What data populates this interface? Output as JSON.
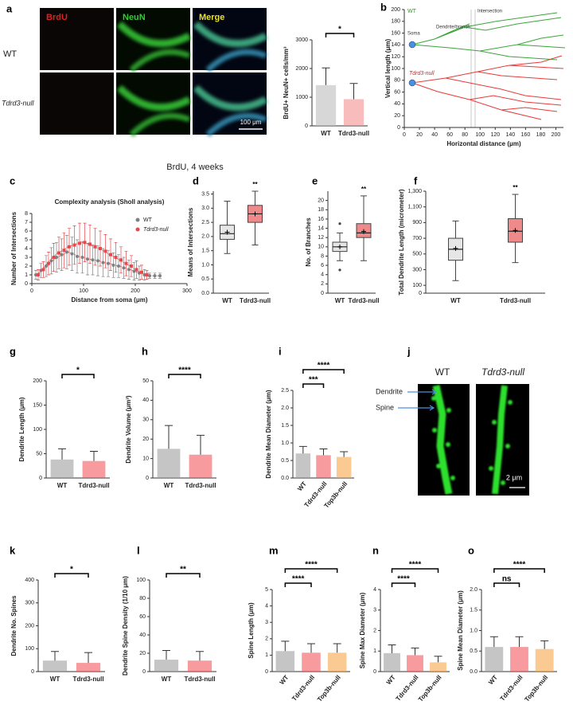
{
  "caption": "BrdU, 4 weeks",
  "images": {
    "a": {
      "panel": "a",
      "channels": [
        "BrdU",
        "NeuN",
        "Merge"
      ],
      "rows": [
        "WT",
        "Tdrd3-null"
      ],
      "scale": "100 μm"
    },
    "b": {
      "annotations": [
        "WT",
        "Dendrite/branch",
        "Intersection",
        "Soma",
        "Tdrd3-null"
      ]
    },
    "j": {
      "panel": "j",
      "columns": [
        "WT",
        "Tdrd3-null"
      ],
      "labels": [
        "Dendrite",
        "Spine"
      ],
      "scale": "2 μm"
    }
  },
  "chart_data": [
    {
      "type": "bar",
      "ylabel": "BrdU+ NeuN+ cells/mm³",
      "categories": [
        "WT",
        "Tdrd3-null"
      ],
      "values": [
        1420,
        930
      ],
      "errors": [
        600,
        550
      ],
      "colors": [
        "#bdbdbd",
        "#f48f8f"
      ],
      "ylim": [
        0,
        3000
      ],
      "yticks": [
        0,
        1000,
        2000,
        3000
      ],
      "significance": [
        "*"
      ]
    },
    {
      "type": "tracing",
      "panel": "b",
      "ylabel": "Vertical length (μm)",
      "xlabel": "Horizontal distance (μm)",
      "xlim": [
        0,
        210
      ],
      "xticks": [
        0,
        20,
        40,
        60,
        80,
        100,
        120,
        140,
        160,
        180,
        200
      ],
      "ylim": [
        0,
        200
      ],
      "yticks": [
        0,
        20,
        40,
        60,
        80,
        100,
        120,
        140,
        160,
        180,
        200
      ]
    },
    {
      "type": "line",
      "panel": "c",
      "title": "Complexity analysis (Sholl analysis)",
      "xlabel": "Distance from soma (μm)",
      "ylabel": "Number of Intersections",
      "x": [
        10,
        20,
        30,
        40,
        50,
        60,
        70,
        80,
        90,
        100,
        110,
        120,
        130,
        140,
        150,
        160,
        170,
        180,
        190,
        200,
        210,
        220,
        230,
        240,
        250
      ],
      "series": [
        {
          "name": "WT",
          "color": "#808080",
          "values": [
            1,
            1.5,
            2,
            2.6,
            3,
            3.3,
            3.6,
            3.4,
            3.1,
            3,
            2.8,
            2.7,
            2.6,
            2.4,
            2.3,
            2.1,
            2,
            1.8,
            1.6,
            1.4,
            1.2,
            1,
            0.9,
            0.9,
            0.9
          ],
          "errors": [
            0.5,
            0.8,
            1.2,
            1.5,
            1.7,
            1.8,
            1.9,
            1.9,
            1.9,
            1.8,
            1.8,
            1.7,
            1.7,
            1.6,
            1.5,
            1.4,
            1.3,
            1.2,
            1.1,
            1,
            0.8,
            0.6,
            0.3,
            0.3,
            0.3
          ]
        },
        {
          "name": "Tdrd3-null",
          "color": "#e8474c",
          "values": [
            1,
            1.6,
            2.3,
            3,
            3.5,
            3.8,
            4.2,
            4.4,
            4.6,
            4.7,
            4.5,
            4.2,
            4,
            3.7,
            3.3,
            3,
            2.7,
            2.3,
            2,
            1.6,
            1.3,
            1,
            null,
            null,
            null
          ],
          "errors": [
            0.6,
            0.9,
            1.3,
            1.6,
            1.8,
            2,
            2.1,
            2.2,
            2.3,
            2.2,
            2.2,
            2.1,
            2,
            1.9,
            1.8,
            1.7,
            1.5,
            1.4,
            1.2,
            1,
            0.8,
            0.5,
            null,
            null,
            null
          ]
        }
      ],
      "xlim": [
        0,
        300
      ],
      "xticks": [
        0,
        100,
        200,
        300
      ],
      "ylim": [
        0,
        8
      ],
      "yticks": [
        0,
        1,
        2,
        3,
        4,
        5,
        6,
        7,
        8
      ]
    },
    {
      "type": "box",
      "panel": "d",
      "ylabel": "Means of Intersections",
      "categories": [
        "WT",
        "Tdrd3-null"
      ],
      "colors": [
        "#e6e6e6",
        "#f08a8a"
      ],
      "boxes": [
        {
          "min": 1.4,
          "q1": 1.9,
          "median": 2.1,
          "q3": 2.4,
          "max": 3.25,
          "mean": 2.15,
          "outliers": []
        },
        {
          "min": 1.7,
          "q1": 2.5,
          "median": 2.8,
          "q3": 3.1,
          "max": 3.6,
          "mean": 2.8,
          "outliers": []
        }
      ],
      "ylim": [
        0,
        3.6
      ],
      "yticks": [
        {
          "value": 0,
          "label": "0.0"
        },
        0.5,
        {
          "value": 1,
          "label": "1.0"
        },
        1.5,
        {
          "value": 2,
          "label": "2.0"
        },
        2.5,
        {
          "value": 3,
          "label": "3.0"
        },
        3.5
      ],
      "significance": [
        "**"
      ]
    },
    {
      "type": "box",
      "panel": "e",
      "ylabel": "No. of Branches",
      "categories": [
        "WT",
        "Tdrd3-null"
      ],
      "colors": [
        "#e6e6e6",
        "#f08a8a"
      ],
      "boxes": [
        {
          "min": 7,
          "q1": 9,
          "median": 10,
          "q3": 11,
          "max": 13,
          "mean": 10,
          "outliers": [
            15,
            5
          ]
        },
        {
          "min": 7,
          "q1": 12,
          "median": 13,
          "q3": 15,
          "max": 21,
          "mean": 13.3,
          "outliers": []
        }
      ],
      "ylim": [
        0,
        22
      ],
      "yticks": [
        0,
        2,
        4,
        6,
        8,
        10,
        12,
        14,
        16,
        18,
        20
      ],
      "significance": [
        "**"
      ]
    },
    {
      "type": "box",
      "panel": "f",
      "ylabel": "Total Dendrite Length (micrometer)",
      "categories": [
        "WT",
        "Tdrd3-null"
      ],
      "colors": [
        "#e6e6e6",
        "#f08a8a"
      ],
      "boxes": [
        {
          "min": 160,
          "q1": 420,
          "median": 560,
          "q3": 700,
          "max": 920,
          "mean": 570,
          "outliers": []
        },
        {
          "min": 390,
          "q1": 650,
          "median": 790,
          "q3": 950,
          "max": 1260,
          "mean": 800,
          "outliers": []
        }
      ],
      "ylim": [
        0,
        1300
      ],
      "yticks": [
        0,
        100,
        300,
        500,
        700,
        900,
        {
          "value": 1100,
          "label": "1,100"
        },
        {
          "value": 1300,
          "label": "1,300"
        }
      ],
      "significance": [
        "**"
      ]
    },
    {
      "type": "bar",
      "panel": "g",
      "ylabel": "Dendrite Length (μm)",
      "categories": [
        "WT",
        "Tdrd3-null"
      ],
      "values": [
        38,
        35
      ],
      "errors": [
        22,
        20
      ],
      "colors": [
        "#9e9e9e",
        "#f2595d"
      ],
      "ylim": [
        0,
        200
      ],
      "yticks": [
        0,
        50,
        100,
        150,
        200
      ],
      "significance": [
        "*"
      ]
    },
    {
      "type": "bar",
      "panel": "h",
      "ylabel": "Dendrite Volume (μm³)",
      "categories": [
        "WT",
        "Tdrd3-null"
      ],
      "values": [
        15,
        12
      ],
      "errors": [
        12,
        10
      ],
      "colors": [
        "#9e9e9e",
        "#f2595d"
      ],
      "ylim": [
        0,
        50
      ],
      "yticks": [
        0,
        10,
        20,
        30,
        40,
        50
      ],
      "significance": [
        "****"
      ]
    },
    {
      "type": "bar",
      "panel": "i",
      "ylabel": "Dendrite Mean Diameter (μm)",
      "categories": [
        "WT",
        "Tdrd3-null",
        "Top3b-null"
      ],
      "values": [
        0.7,
        0.65,
        0.6
      ],
      "errors": [
        0.2,
        0.18,
        0.15
      ],
      "colors": [
        "#9e9e9e",
        "#f2595d",
        "#f9a54a"
      ],
      "ylim": [
        0,
        2.5
      ],
      "yticks": [
        {
          "value": 0,
          "label": "0.0"
        },
        0.5,
        {
          "value": 1,
          "label": "1.0"
        },
        1.5,
        {
          "value": 2,
          "label": "2.0"
        },
        2.5
      ],
      "significance": [
        "***",
        "****"
      ]
    },
    {
      "type": "bar",
      "panel": "k",
      "ylabel": "Dendrite No. Spines",
      "categories": [
        "WT",
        "Tdrd3-null"
      ],
      "values": [
        48,
        38
      ],
      "errors": [
        40,
        45
      ],
      "colors": [
        "#9e9e9e",
        "#f2595d"
      ],
      "ylim": [
        0,
        400
      ],
      "yticks": [
        0,
        100,
        200,
        300,
        400
      ],
      "significance": [
        "*"
      ]
    },
    {
      "type": "bar",
      "panel": "l",
      "ylabel": "Dendrite Spine Density (1/10 μm)",
      "categories": [
        "WT",
        "Tdrd3-null"
      ],
      "values": [
        13,
        12
      ],
      "errors": [
        10,
        10
      ],
      "colors": [
        "#9e9e9e",
        "#f2595d"
      ],
      "ylim": [
        0,
        100
      ],
      "yticks": [
        0,
        20,
        40,
        60,
        80,
        100
      ],
      "significance": [
        "**"
      ]
    },
    {
      "type": "bar",
      "panel": "m",
      "ylabel": "Spine Length (μm)",
      "categories": [
        "WT",
        "Tdrd3-null",
        "Top3b-null"
      ],
      "values": [
        1.25,
        1.15,
        1.15
      ],
      "errors": [
        0.6,
        0.55,
        0.55
      ],
      "colors": [
        "#9e9e9e",
        "#f2595d",
        "#f9a54a"
      ],
      "ylim": [
        0,
        5
      ],
      "yticks": [
        0,
        1,
        2,
        3,
        4,
        5
      ],
      "significance": [
        "****",
        "****"
      ]
    },
    {
      "type": "bar",
      "panel": "n",
      "ylabel": "Spine Max Diameter (μm)",
      "categories": [
        "WT",
        "Tdrd3-null",
        "Top3b-null"
      ],
      "values": [
        0.9,
        0.8,
        0.45
      ],
      "errors": [
        0.4,
        0.35,
        0.3
      ],
      "colors": [
        "#9e9e9e",
        "#f2595d",
        "#f9a54a"
      ],
      "ylim": [
        0,
        4
      ],
      "yticks": [
        0,
        1,
        2,
        3,
        4
      ],
      "significance": [
        "****",
        "****"
      ]
    },
    {
      "type": "bar",
      "panel": "o",
      "ylabel": "Spine Mean Diameter (μm)",
      "categories": [
        "WT",
        "Tdrd3-null",
        "Top3b-null"
      ],
      "values": [
        0.6,
        0.6,
        0.55
      ],
      "errors": [
        0.25,
        0.25,
        0.2
      ],
      "colors": [
        "#9e9e9e",
        "#f2595d",
        "#f9a54a"
      ],
      "ylim": [
        0,
        2
      ],
      "yticks": [
        {
          "value": 0,
          "label": "0.0"
        },
        0.5,
        {
          "value": 1,
          "label": "1.0"
        },
        1.5,
        {
          "value": 2,
          "label": "2.0"
        }
      ],
      "significance": [
        "ns",
        "****"
      ]
    }
  ]
}
